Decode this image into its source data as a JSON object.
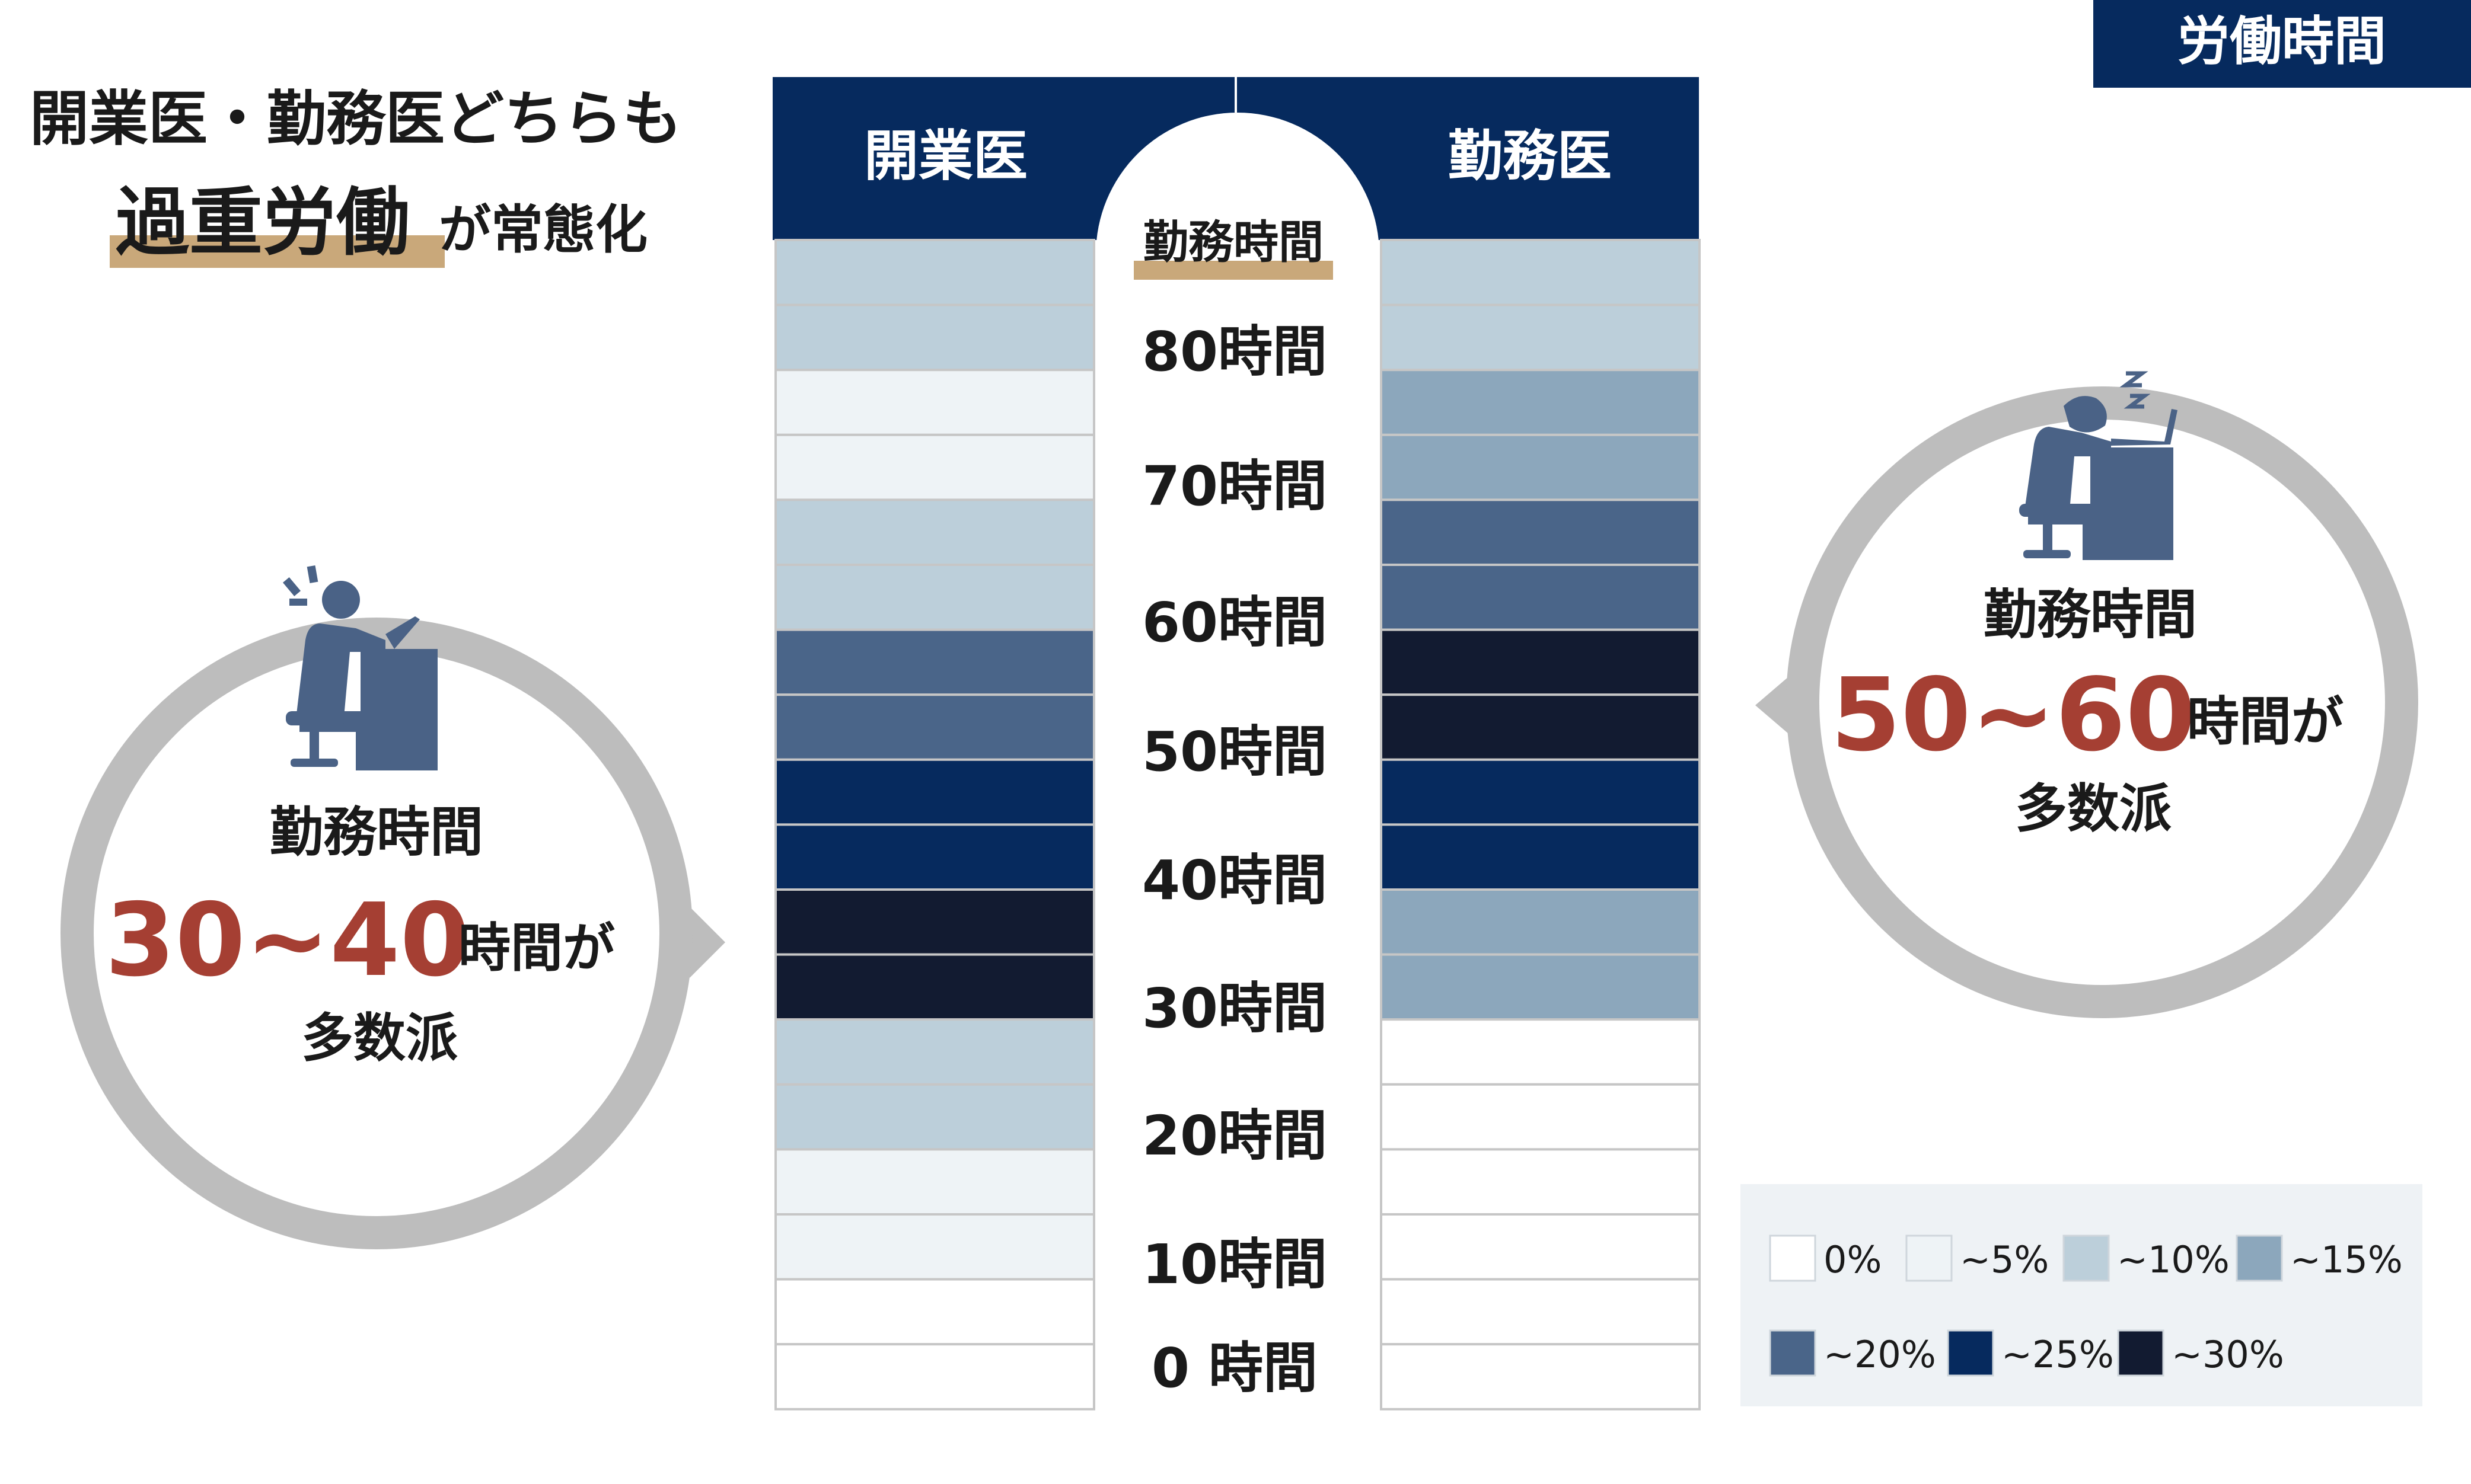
{
  "tag": {
    "label": "労働時間"
  },
  "headline": {
    "line1": "開業医・勤務医どちらも",
    "emphasis": "過重労働",
    "suffix": "が常態化"
  },
  "center_column": {
    "header": "勤務時間"
  },
  "left_bubble": {
    "title": "勤務時間",
    "range_value": "30~40",
    "range_suffix": "時間が",
    "conclusion": "多数派",
    "icon": "tired-worker-icon"
  },
  "right_bubble": {
    "title": "勤務時間",
    "range_value": "50~60",
    "range_suffix": "時間が",
    "conclusion": "多数派",
    "icon": "sleeping-worker-icon"
  },
  "colors": {
    "navy": "#062a5e",
    "accent_red": "#a53f33",
    "underline_gold": "#c9a87a",
    "bubble_gray": "#bdbdbd",
    "icon_blue": "#4a6286",
    "legend_bg": "#eef2f5"
  },
  "chart_data": {
    "type": "heatmap",
    "columns": [
      "開業医",
      "勤務医"
    ],
    "y_tick_labels": [
      "80時間",
      "70時間",
      "60時間",
      "50時間",
      "40時間",
      "30時間",
      "20時間",
      "10時間",
      "0 時間"
    ],
    "y_range_hours": [
      0,
      90
    ],
    "bin_width_hours": 5,
    "bins_top_to_bottom": [
      "85-90",
      "80-85",
      "75-80",
      "70-75",
      "65-70",
      "60-65",
      "55-60",
      "50-55",
      "45-50",
      "40-45",
      "35-40",
      "30-35",
      "25-30",
      "20-25",
      "15-20",
      "10-15",
      "5-10",
      "0-5"
    ],
    "values_legend_index": {
      "開業医": [
        2,
        2,
        1,
        1,
        2,
        2,
        4,
        4,
        5,
        5,
        6,
        6,
        2,
        2,
        1,
        1,
        0,
        0
      ],
      "勤務医": [
        2,
        2,
        3,
        3,
        4,
        4,
        6,
        6,
        5,
        5,
        3,
        3,
        0,
        0,
        0,
        0,
        0,
        0
      ]
    },
    "legend": [
      {
        "label": "0%",
        "color": "#ffffff"
      },
      {
        "label": "~5%",
        "color": "#eef3f6"
      },
      {
        "label": "~10%",
        "color": "#bccfda"
      },
      {
        "label": "~15%",
        "color": "#8ca7bc"
      },
      {
        "label": "~20%",
        "color": "#4a6589"
      },
      {
        "label": "~25%",
        "color": "#062a5e"
      },
      {
        "label": "~30%",
        "color": "#121b31"
      }
    ],
    "legend_placement": "bottom-right",
    "grid": true
  }
}
